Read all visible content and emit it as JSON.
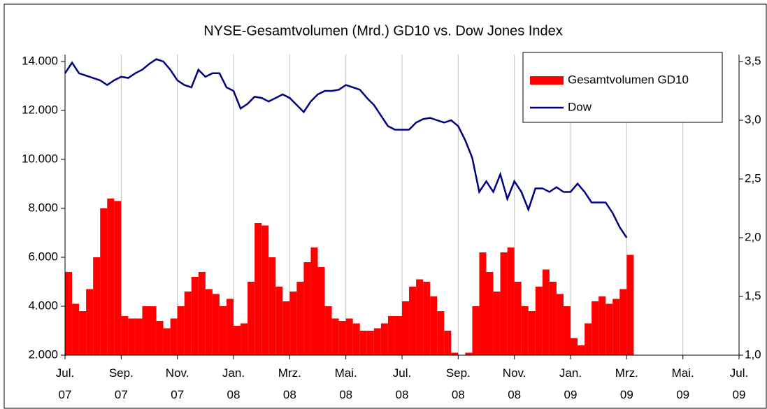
{
  "chart_data": {
    "type": "bar-line",
    "title": "NYSE-Gesamtvolumen (Mrd.) GD10 vs. Dow Jones Index",
    "x": [
      0,
      0.25,
      0.5,
      0.75,
      1,
      1.25,
      1.5,
      1.75,
      2,
      2.25,
      2.5,
      2.75,
      3,
      3.25,
      3.5,
      3.75,
      4,
      4.25,
      4.5,
      4.75,
      5,
      5.25,
      5.5,
      5.75,
      6,
      6.25,
      6.5,
      6.75,
      7,
      7.25,
      7.5,
      7.75,
      8,
      8.25,
      8.5,
      8.75,
      9,
      9.25,
      9.5,
      9.75,
      10,
      10.25,
      10.5,
      10.75,
      11,
      11.25,
      11.5,
      11.75,
      12,
      12.25,
      12.5,
      12.75,
      13,
      13.25,
      13.5,
      13.75,
      14,
      14.25,
      14.5,
      14.75,
      15,
      15.25,
      15.5,
      15.75,
      16,
      16.25,
      16.5,
      16.75,
      17,
      17.25,
      17.5,
      17.75,
      18,
      18.25,
      18.5,
      18.75,
      19,
      19.25,
      19.5,
      19.75,
      20
    ],
    "series": [
      {
        "name": "Gesamtvolumen GD10",
        "type": "bar",
        "color": "#ff0000",
        "axis": "y",
        "values": [
          5400,
          4100,
          3800,
          4700,
          6000,
          8000,
          8400,
          8300,
          3600,
          3500,
          3500,
          4000,
          4000,
          3400,
          3100,
          3500,
          4000,
          4600,
          5200,
          5400,
          4700,
          4500,
          4000,
          4300,
          3200,
          3300,
          5000,
          7400,
          7300,
          6000,
          4800,
          4200,
          4600,
          5000,
          5800,
          6400,
          5600,
          4000,
          3500,
          3400,
          3500,
          3300,
          3000,
          3000,
          3100,
          3300,
          3600,
          3600,
          4200,
          4800,
          5100,
          5000,
          4400,
          3800,
          3000,
          2100,
          2000,
          2100,
          4000,
          6200,
          5400,
          4600,
          6200,
          6400,
          5000,
          4000,
          3800,
          4800,
          5500,
          5000,
          4500,
          4000,
          2700,
          2400,
          3300,
          4200,
          4400,
          4100,
          4300,
          4700,
          6100
        ]
      },
      {
        "name": "Dow",
        "type": "line",
        "color": "#000080",
        "axis": "y2",
        "values": [
          3.4,
          3.49,
          3.4,
          3.38,
          3.36,
          3.34,
          3.3,
          3.34,
          3.37,
          3.36,
          3.4,
          3.43,
          3.48,
          3.52,
          3.5,
          3.43,
          3.34,
          3.3,
          3.28,
          3.43,
          3.37,
          3.4,
          3.4,
          3.28,
          3.25,
          3.1,
          3.14,
          3.2,
          3.19,
          3.16,
          3.19,
          3.22,
          3.19,
          3.13,
          3.07,
          3.16,
          3.22,
          3.25,
          3.25,
          3.26,
          3.3,
          3.28,
          3.26,
          3.19,
          3.13,
          3.04,
          2.95,
          2.92,
          2.92,
          2.92,
          2.98,
          3.01,
          3.02,
          3.0,
          2.98,
          3.0,
          2.95,
          2.83,
          2.68,
          2.39,
          2.48,
          2.39,
          2.54,
          2.33,
          2.48,
          2.39,
          2.24,
          2.42,
          2.42,
          2.39,
          2.43,
          2.39,
          2.39,
          2.46,
          2.39,
          2.3,
          2.3,
          2.3,
          2.21,
          2.09,
          2.0
        ]
      }
    ],
    "xlim": [
      0,
      24
    ],
    "xticks": [
      {
        "value": 0,
        "label": "Jul.\n07"
      },
      {
        "value": 2,
        "label": "Sep.\n07"
      },
      {
        "value": 4,
        "label": "Nov.\n07"
      },
      {
        "value": 6,
        "label": "Jan.\n08"
      },
      {
        "value": 8,
        "label": "Mrz.\n08"
      },
      {
        "value": 10,
        "label": "Mai.\n08"
      },
      {
        "value": 12,
        "label": "Jul.\n08"
      },
      {
        "value": 14,
        "label": "Sep.\n08"
      },
      {
        "value": 16,
        "label": "Nov.\n08"
      },
      {
        "value": 18,
        "label": "Jan.\n09"
      },
      {
        "value": 20,
        "label": "Mrz.\n09"
      },
      {
        "value": 22,
        "label": "Mai.\n09"
      },
      {
        "value": 24,
        "label": "Jul.\n09"
      }
    ],
    "ylim": [
      2000,
      14000
    ],
    "yticks": [
      {
        "value": 2000,
        "label": "2.000"
      },
      {
        "value": 4000,
        "label": "4.000"
      },
      {
        "value": 6000,
        "label": "6.000"
      },
      {
        "value": 8000,
        "label": "8.000"
      },
      {
        "value": 10000,
        "label": "10.000"
      },
      {
        "value": 12000,
        "label": "12.000"
      },
      {
        "value": 14000,
        "label": "14.000"
      }
    ],
    "y2lim": [
      1.0,
      3.5
    ],
    "y2ticks": [
      {
        "value": 1.0,
        "label": "1,0"
      },
      {
        "value": 1.5,
        "label": "1,5"
      },
      {
        "value": 2.0,
        "label": "2,0"
      },
      {
        "value": 2.5,
        "label": "2,5"
      },
      {
        "value": 3.0,
        "label": "3,0"
      },
      {
        "value": 3.5,
        "label": "3,5"
      }
    ],
    "grid": true,
    "legend": "upper right"
  }
}
